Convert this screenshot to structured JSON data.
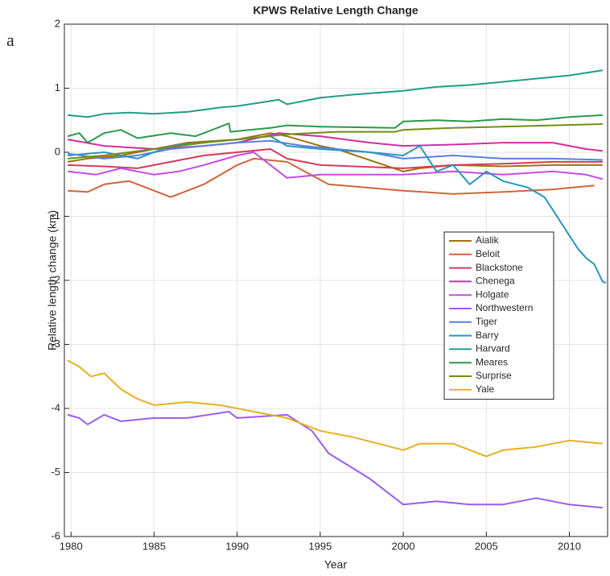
{
  "chart_data": {
    "type": "line",
    "title": "KPWS Relative Length Change",
    "panel_label": "a",
    "x_label": "Year",
    "y_label": "Relative length change (km)",
    "xlim": [
      1979.6,
      2012.3
    ],
    "ylim": [
      -6,
      2
    ],
    "xticks": [
      1980,
      1985,
      1990,
      1995,
      2000,
      2005,
      2010
    ],
    "yticks": [
      -6,
      -5,
      -4,
      -3,
      -2,
      -1,
      0,
      1,
      2
    ],
    "grid": true,
    "legend": "east",
    "series": [
      {
        "name": "Aialik",
        "color": "#a0720f",
        "x": [
          1979.8,
          1981,
          1983,
          1985,
          1987,
          1990,
          1992,
          1993,
          1995,
          1996,
          2000,
          2001,
          2003,
          2006,
          2009,
          2012
        ],
        "values": [
          -0.15,
          -0.1,
          -0.05,
          0.05,
          0.15,
          0.2,
          0.3,
          0.25,
          0.1,
          0.05,
          -0.3,
          -0.25,
          -0.2,
          -0.22,
          -0.2,
          -0.2
        ]
      },
      {
        "name": "Beloit",
        "color": "#d0653a",
        "x": [
          1979.8,
          1981,
          1982,
          1983.5,
          1985,
          1986,
          1988,
          1990,
          1991,
          1993,
          1995.5,
          2000,
          2003,
          2006,
          2009,
          2011.5
        ],
        "values": [
          -0.6,
          -0.62,
          -0.5,
          -0.45,
          -0.6,
          -0.7,
          -0.5,
          -0.2,
          -0.1,
          -0.15,
          -0.5,
          -0.6,
          -0.65,
          -0.62,
          -0.58,
          -0.52
        ]
      },
      {
        "name": "Blackstone",
        "color": "#d63a5a",
        "x": [
          1979.8,
          1982,
          1984,
          1986,
          1988,
          1990,
          1992,
          1993,
          1995,
          2000,
          2003,
          2006,
          2009,
          2012
        ],
        "values": [
          -0.2,
          -0.22,
          -0.25,
          -0.15,
          -0.05,
          0,
          0.05,
          -0.1,
          -0.2,
          -0.25,
          -0.2,
          -0.18,
          -0.15,
          -0.15
        ]
      },
      {
        "name": "Chenega",
        "color": "#d42da0",
        "x": [
          1979.8,
          1982,
          1985,
          1988,
          1990,
          1992.5,
          1995,
          1998,
          2000,
          2003,
          2006,
          2009,
          2011,
          2012
        ],
        "values": [
          0.2,
          0.1,
          0.05,
          0.1,
          0.15,
          0.3,
          0.25,
          0.15,
          0.1,
          0.12,
          0.15,
          0.15,
          0.05,
          0.02
        ]
      },
      {
        "name": "Holgate",
        "color": "#c44ee0",
        "x": [
          1979.8,
          1981.5,
          1983,
          1985,
          1986.5,
          1988,
          1990,
          1991,
          1993,
          1995,
          2000,
          2003,
          2006,
          2009,
          2011,
          2012
        ],
        "values": [
          -0.3,
          -0.35,
          -0.25,
          -0.35,
          -0.3,
          -0.2,
          -0.05,
          0,
          -0.4,
          -0.35,
          -0.35,
          -0.3,
          -0.35,
          -0.3,
          -0.35,
          -0.42
        ]
      },
      {
        "name": "Northwestern",
        "color": "#9b5cf0",
        "x": [
          1979.8,
          1980.5,
          1981,
          1982,
          1983,
          1985,
          1987,
          1989.5,
          1990,
          1993,
          1994.5,
          1995.5,
          1998,
          2000,
          2002,
          2004,
          2006,
          2008,
          2010,
          2012
        ],
        "values": [
          -4.1,
          -4.15,
          -4.25,
          -4.1,
          -4.2,
          -4.15,
          -4.15,
          -4.05,
          -4.15,
          -4.1,
          -4.35,
          -4.7,
          -5.1,
          -5.5,
          -5.45,
          -5.5,
          -5.5,
          -5.4,
          -5.5,
          -5.55
        ]
      },
      {
        "name": "Tiger",
        "color": "#5a7fe0",
        "x": [
          1979.8,
          1982,
          1984,
          1986,
          1988,
          1990,
          1992,
          1994,
          1996,
          1998,
          2000,
          2003,
          2006,
          2009,
          2012
        ],
        "values": [
          -0.02,
          -0.1,
          -0.05,
          0.05,
          0.1,
          0.15,
          0.18,
          0.1,
          0.05,
          0,
          -0.1,
          -0.05,
          -0.1,
          -0.1,
          -0.12
        ]
      },
      {
        "name": "Barry",
        "color": "#2a96c0",
        "x": [
          1979.8,
          1982,
          1984,
          1986,
          1988,
          1990,
          1992,
          1993,
          1995,
          1998,
          2000,
          2001,
          2002,
          2003,
          2004,
          2005,
          2006,
          2007.5,
          2008.5,
          2009.5,
          2010.5,
          2011,
          2011.5,
          2012,
          2012.2
        ],
        "values": [
          -0.05,
          0,
          -0.1,
          0.1,
          0.15,
          0.2,
          0.25,
          0.1,
          0.05,
          0,
          -0.05,
          0.1,
          -0.3,
          -0.2,
          -0.5,
          -0.3,
          -0.45,
          -0.55,
          -0.7,
          -1.1,
          -1.5,
          -1.65,
          -1.75,
          -2.02,
          -2.04
        ]
      },
      {
        "name": "Harvard",
        "color": "#1e9e8a",
        "x": [
          1979.8,
          1981,
          1982,
          1983.5,
          1985,
          1987,
          1989,
          1990,
          1992.5,
          1993,
          1995,
          1997,
          2000,
          2002,
          2004,
          2006,
          2008,
          2010,
          2012
        ],
        "values": [
          0.58,
          0.55,
          0.6,
          0.62,
          0.6,
          0.63,
          0.7,
          0.72,
          0.82,
          0.75,
          0.85,
          0.9,
          0.96,
          1.02,
          1.05,
          1.1,
          1.15,
          1.2,
          1.28
        ]
      },
      {
        "name": "Meares",
        "color": "#2a9a4a",
        "x": [
          1979.8,
          1980.5,
          1981,
          1982,
          1983,
          1984,
          1986,
          1987.5,
          1989.5,
          1989.6,
          1992,
          1993,
          1995,
          1999.5,
          2000,
          2002,
          2004,
          2006,
          2008,
          2010,
          2012
        ],
        "values": [
          0.25,
          0.3,
          0.15,
          0.3,
          0.35,
          0.22,
          0.3,
          0.25,
          0.45,
          0.32,
          0.38,
          0.42,
          0.4,
          0.38,
          0.48,
          0.5,
          0.48,
          0.52,
          0.5,
          0.55,
          0.58
        ]
      },
      {
        "name": "Surprise",
        "color": "#6f8f12",
        "x": [
          1979.8,
          1982,
          1985,
          1988,
          1990,
          1993,
          1996,
          1999.5,
          2000,
          2003,
          2006,
          2009,
          2012
        ],
        "values": [
          -0.1,
          -0.05,
          0.05,
          0.15,
          0.2,
          0.28,
          0.32,
          0.32,
          0.35,
          0.38,
          0.4,
          0.42,
          0.44
        ]
      },
      {
        "name": "Yale",
        "color": "#e8b020",
        "x": [
          1979.8,
          1980.5,
          1981.2,
          1982,
          1983,
          1984,
          1985,
          1987,
          1989,
          1991,
          1993,
          1995,
          1997,
          2000,
          2001,
          2003,
          2005,
          2006,
          2008,
          2010,
          2012
        ],
        "values": [
          -3.25,
          -3.35,
          -3.5,
          -3.45,
          -3.7,
          -3.85,
          -3.95,
          -3.9,
          -3.95,
          -4.05,
          -4.15,
          -4.35,
          -4.45,
          -4.65,
          -4.55,
          -4.55,
          -4.75,
          -4.65,
          -4.6,
          -4.5,
          -4.55
        ]
      }
    ]
  }
}
